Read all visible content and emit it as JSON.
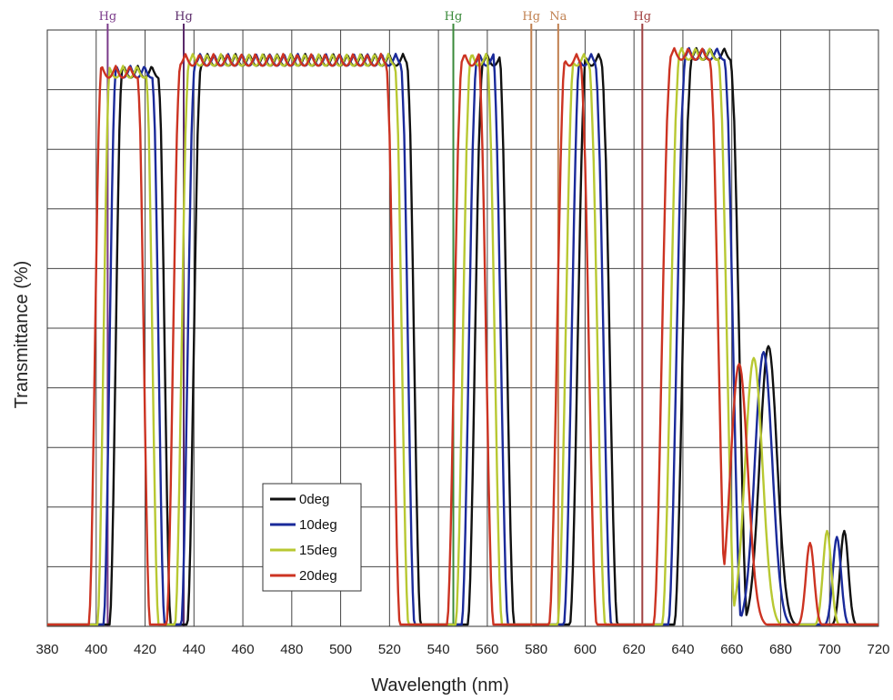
{
  "chart_data": {
    "type": "line",
    "title": "",
    "xlabel": "Wavelength (nm)",
    "ylabel": "Transmittance (%)",
    "xlim": [
      380,
      720
    ],
    "ylim": [
      0,
      100
    ],
    "x_ticks": [
      380,
      400,
      420,
      440,
      460,
      480,
      500,
      520,
      540,
      560,
      580,
      600,
      620,
      640,
      660,
      680,
      700,
      720
    ],
    "x_tick_labels": [
      "380",
      "400",
      "420",
      "440",
      "460",
      "480",
      "500",
      "520",
      "540",
      "560",
      "580",
      "600",
      "620",
      "640",
      "660",
      "680",
      "700",
      "720"
    ],
    "y_ticks": [
      0,
      10,
      20,
      30,
      40,
      50,
      60,
      70,
      80,
      90,
      100
    ],
    "grid": true,
    "legend_position": "lower-left",
    "markers": [
      {
        "label": "Hg",
        "x": 404.7,
        "color": "#7a3a8a"
      },
      {
        "label": "Hg",
        "x": 435.8,
        "color": "#5a2a6a"
      },
      {
        "label": "Hg",
        "x": 546.1,
        "color": "#3a8a3a"
      },
      {
        "label": "Hg",
        "x": 578.0,
        "color": "#c08050"
      },
      {
        "label": "Na",
        "x": 589.0,
        "color": "#c08050"
      },
      {
        "label": "Hg",
        "x": 623.4,
        "color": "#a04040"
      }
    ],
    "series": [
      {
        "name": "0deg",
        "color": "#111111",
        "shift": 0,
        "extras": [
          [
            675,
            47
          ],
          [
            706,
            16
          ]
        ]
      },
      {
        "name": "10deg",
        "color": "#1a2a9a",
        "shift": -2.5,
        "extras": [
          [
            673,
            46
          ],
          [
            703,
            15
          ]
        ]
      },
      {
        "name": "15deg",
        "color": "#b8c832",
        "shift": -5,
        "extras": [
          [
            669,
            45
          ],
          [
            699,
            16
          ]
        ]
      },
      {
        "name": "20deg",
        "color": "#cc3322",
        "shift": -8.5,
        "extras": [
          [
            663,
            44
          ],
          [
            692,
            14
          ]
        ]
      }
    ],
    "bands": [
      {
        "start": 408,
        "end": 428,
        "top": 94
      },
      {
        "start": 440,
        "end": 530,
        "top": 96
      },
      {
        "start": 555,
        "end": 568,
        "top": 96
      },
      {
        "start": 597,
        "end": 610,
        "top": 96
      },
      {
        "start": 640,
        "end": 663,
        "top": 97
      }
    ]
  }
}
